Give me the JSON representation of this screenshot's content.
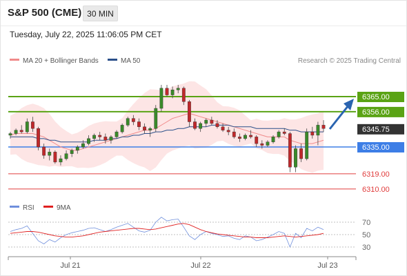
{
  "header": {
    "title": "S&P 500 (CME)",
    "timeframe": "30 MIN",
    "datetime": "Tuesday, July 22, 2025 11:06:05 PM CET"
  },
  "legend": {
    "bollinger_label": "MA 20 + Bollinger Bands",
    "bollinger_color": "#f08a8a",
    "ma50_label": "MA 50",
    "ma50_color": "#2a4f8a",
    "copyright": "Research © 2025 Trading Central"
  },
  "levels": [
    {
      "value": 6365.0,
      "label": "6365.00",
      "kind": "resistance",
      "color": "#5aa314"
    },
    {
      "value": 6356.0,
      "label": "6356.00",
      "kind": "resistance",
      "color": "#5aa314"
    },
    {
      "value": 6345.75,
      "label": "6345.75",
      "kind": "last",
      "color": "#333333"
    },
    {
      "value": 6335.0,
      "label": "6335.00",
      "kind": "pivot",
      "color": "#3d7ee6"
    },
    {
      "value": 6319.0,
      "label": "6319.00",
      "kind": "support",
      "color": "#e03c3c"
    },
    {
      "value": 6310.0,
      "label": "6310.00",
      "kind": "support",
      "color": "#e03c3c"
    }
  ],
  "rsi": {
    "rsi_label": "RSI",
    "rsi_color": "#6f8fdc",
    "ma_label": "9MA",
    "ma_color": "#e02020",
    "ticks": [
      "70",
      "50",
      "30"
    ]
  },
  "x_axis": {
    "ticks": [
      "Jul 21",
      "Jul 22",
      "Jul 23"
    ]
  },
  "chart_data": {
    "type": "candlestick",
    "title": "S&P 500 (CME)",
    "timeframe": "30 MIN",
    "ylim": [
      6305,
      6375
    ],
    "levels": [
      6365.0,
      6356.0,
      6345.75,
      6335.0,
      6319.0,
      6310.0
    ],
    "candles": [
      [
        6342,
        6344,
        6340,
        6343
      ],
      [
        6343,
        6346,
        6342,
        6345
      ],
      [
        6345,
        6348,
        6343,
        6344
      ],
      [
        6344,
        6352,
        6343,
        6350
      ],
      [
        6350,
        6353,
        6344,
        6346
      ],
      [
        6346,
        6347,
        6333,
        6335
      ],
      [
        6335,
        6337,
        6328,
        6330
      ],
      [
        6330,
        6334,
        6327,
        6332
      ],
      [
        6332,
        6333,
        6325,
        6326
      ],
      [
        6326,
        6330,
        6324,
        6328
      ],
      [
        6328,
        6333,
        6327,
        6331
      ],
      [
        6331,
        6334,
        6329,
        6333
      ],
      [
        6333,
        6336,
        6331,
        6335
      ],
      [
        6335,
        6339,
        6334,
        6337
      ],
      [
        6337,
        6342,
        6336,
        6340
      ],
      [
        6340,
        6343,
        6338,
        6342
      ],
      [
        6342,
        6344,
        6339,
        6341
      ],
      [
        6341,
        6343,
        6337,
        6339
      ],
      [
        6339,
        6342,
        6337,
        6341
      ],
      [
        6341,
        6345,
        6340,
        6344
      ],
      [
        6344,
        6349,
        6343,
        6348
      ],
      [
        6348,
        6353,
        6347,
        6352
      ],
      [
        6352,
        6354,
        6348,
        6350
      ],
      [
        6350,
        6352,
        6345,
        6347
      ],
      [
        6347,
        6349,
        6343,
        6345
      ],
      [
        6345,
        6347,
        6341,
        6346
      ],
      [
        6346,
        6360,
        6344,
        6358
      ],
      [
        6358,
        6372,
        6356,
        6370
      ],
      [
        6370,
        6372,
        6365,
        6366
      ],
      [
        6366,
        6371,
        6364,
        6369
      ],
      [
        6369,
        6372,
        6367,
        6370
      ],
      [
        6370,
        6371,
        6360,
        6362
      ],
      [
        6362,
        6363,
        6347,
        6350
      ],
      [
        6350,
        6352,
        6345,
        6346
      ],
      [
        6346,
        6350,
        6344,
        6349
      ],
      [
        6349,
        6352,
        6347,
        6351
      ],
      [
        6351,
        6353,
        6348,
        6349
      ],
      [
        6349,
        6351,
        6346,
        6347
      ],
      [
        6347,
        6349,
        6344,
        6345
      ],
      [
        6345,
        6347,
        6342,
        6344
      ],
      [
        6344,
        6346,
        6340,
        6341
      ],
      [
        6341,
        6343,
        6338,
        6340
      ],
      [
        6340,
        6343,
        6339,
        6342
      ],
      [
        6342,
        6345,
        6340,
        6341
      ],
      [
        6341,
        6342,
        6335,
        6337
      ],
      [
        6337,
        6339,
        6334,
        6336
      ],
      [
        6336,
        6339,
        6335,
        6338
      ],
      [
        6338,
        6342,
        6337,
        6341
      ],
      [
        6341,
        6345,
        6340,
        6344
      ],
      [
        6344,
        6346,
        6342,
        6343
      ],
      [
        6343,
        6344,
        6320,
        6323
      ],
      [
        6323,
        6336,
        6320,
        6334
      ],
      [
        6334,
        6337,
        6326,
        6328
      ],
      [
        6328,
        6346,
        6327,
        6344
      ],
      [
        6344,
        6347,
        6340,
        6342
      ],
      [
        6342,
        6350,
        6336,
        6348
      ],
      [
        6348,
        6351,
        6344,
        6346
      ]
    ],
    "series": [
      {
        "name": "MA 20",
        "color": "#f08a8a",
        "values": [
          6342,
          6343,
          6343,
          6343,
          6343,
          6342,
          6341,
          6339,
          6337,
          6335,
          6334,
          6333,
          6333,
          6334,
          6335,
          6336,
          6337,
          6338,
          6339,
          6340,
          6341,
          6342,
          6343,
          6344,
          6345,
          6345,
          6346,
          6348,
          6350,
          6352,
          6353,
          6354,
          6355,
          6354,
          6353,
          6352,
          6351,
          6350,
          6349,
          6348,
          6347,
          6346,
          6345,
          6344,
          6343,
          6342,
          6341,
          6341,
          6341,
          6341,
          6339,
          6338,
          6337,
          6337,
          6337,
          6338,
          6339
        ]
      },
      {
        "name": "MA 50",
        "color": "#2a4f8a",
        "values": [
          6341,
          6341,
          6341,
          6341,
          6341,
          6340,
          6340,
          6339,
          6339,
          6338,
          6338,
          6338,
          6338,
          6338,
          6338,
          6339,
          6339,
          6339,
          6340,
          6340,
          6341,
          6341,
          6342,
          6342,
          6343,
          6343,
          6344,
          6344,
          6345,
          6345,
          6346,
          6346,
          6347,
          6347,
          6347,
          6347,
          6348,
          6348,
          6348,
          6348,
          6347,
          6347,
          6347,
          6347,
          6346,
          6346,
          6346,
          6346,
          6346,
          6346,
          6345,
          6345,
          6344,
          6344,
          6344,
          6344,
          6344
        ]
      },
      {
        "name": "RSI",
        "color": "#6f8fdc",
        "values": [
          55,
          58,
          60,
          64,
          52,
          40,
          35,
          42,
          38,
          45,
          50,
          53,
          55,
          57,
          60,
          61,
          58,
          55,
          58,
          62,
          65,
          68,
          62,
          56,
          54,
          57,
          70,
          78,
          72,
          74,
          75,
          62,
          48,
          42,
          50,
          55,
          52,
          50,
          47,
          48,
          44,
          42,
          48,
          46,
          40,
          42,
          46,
          50,
          55,
          52,
          30,
          52,
          45,
          60,
          56,
          62,
          58
        ]
      },
      {
        "name": "9MA",
        "color": "#e02020",
        "values": [
          52,
          53,
          54,
          55,
          55,
          54,
          52,
          50,
          48,
          47,
          46,
          46,
          47,
          48,
          50,
          52,
          54,
          55,
          56,
          57,
          58,
          59,
          60,
          60,
          59,
          58,
          59,
          61,
          63,
          65,
          67,
          68,
          66,
          62,
          58,
          55,
          53,
          51,
          50,
          49,
          48,
          47,
          46,
          46,
          45,
          45,
          45,
          46,
          47,
          48,
          47,
          46,
          47,
          48,
          49,
          50,
          52
        ]
      }
    ]
  }
}
